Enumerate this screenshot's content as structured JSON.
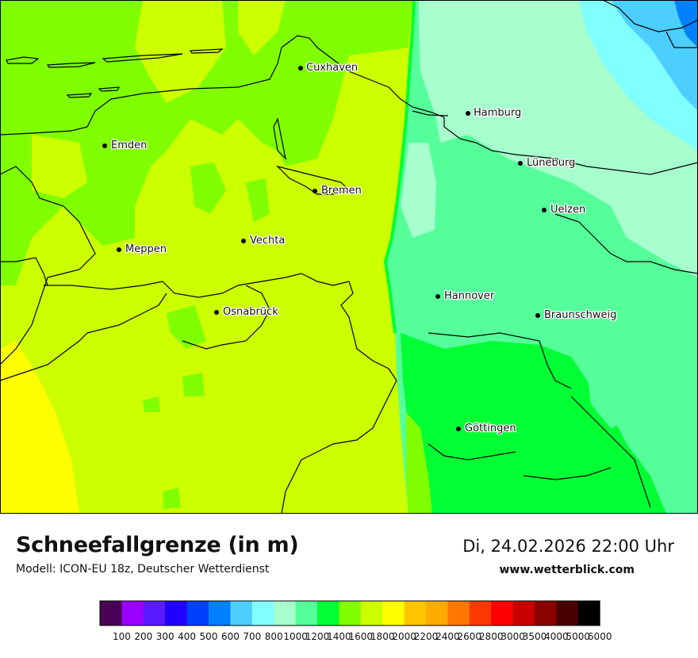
{
  "header": {
    "title": "Schneefallgrenze (in m)",
    "subtitle": "Modell: ICON-EU 18z, Deutscher Wetterdienst",
    "datetime": "Di, 24.02.2026 22:00 Uhr",
    "website": "www.wetterblick.com"
  },
  "cities": [
    {
      "name": "Cuxhaven"
    },
    {
      "name": "Hamburg"
    },
    {
      "name": "Emden"
    },
    {
      "name": "Lüneburg"
    },
    {
      "name": "Bremen"
    },
    {
      "name": "Uelzen"
    },
    {
      "name": "Vechta"
    },
    {
      "name": "Meppen"
    },
    {
      "name": "Hannover"
    },
    {
      "name": "Osnabrück"
    },
    {
      "name": "Braunschweig"
    },
    {
      "name": "Göttingen"
    }
  ],
  "legend": {
    "labels": [
      "100",
      "200",
      "300",
      "400",
      "500",
      "600",
      "700",
      "800",
      "1000",
      "1200",
      "1400",
      "1600",
      "1800",
      "2000",
      "2200",
      "2400",
      "2600",
      "2800",
      "3000",
      "3500",
      "4000",
      "5000",
      "6000"
    ],
    "colors": [
      "#4a0055",
      "#9a00ff",
      "#5a1aff",
      "#2000ff",
      "#0040ff",
      "#0080ff",
      "#4ccfff",
      "#80ffff",
      "#a6ffcc",
      "#55ff99",
      "#00ff33",
      "#80ff00",
      "#ccff00",
      "#ffff00",
      "#ffc400",
      "#ffaa00",
      "#ff7700",
      "#ff3a00",
      "#ff0000",
      "#c80000",
      "#8a0000",
      "#4a0000",
      "#000000"
    ]
  }
}
